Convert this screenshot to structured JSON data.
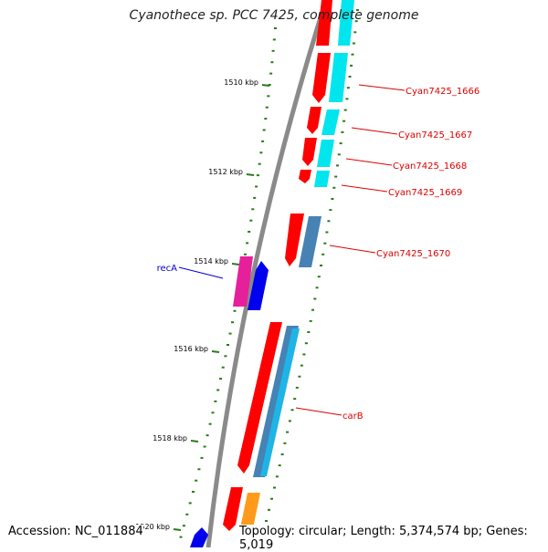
{
  "title": "Cyanothece sp. PCC 7425, complete genome",
  "footer": {
    "accession": "Accession: NC_011884",
    "summary": "Topology: circular; Length: 5,374,574 bp; Genes: 5,019"
  },
  "colors": {
    "backbone": "#8a8a8a",
    "tick": "#2a7a1a",
    "gene_red": "#ff0000",
    "gene_cyan": "#00e5ee",
    "gene_steelblue": "#4682b4",
    "gene_skyblue": "#1fb4e6",
    "gene_pink": "#e6209a",
    "gene_blue": "#0000ee",
    "gene_orange": "#ff9a1a",
    "label_red": "#dd0000",
    "label_blue": "#0000cc"
  },
  "ticks": [
    {
      "kbp": 1510,
      "label": "1510 kbp"
    },
    {
      "kbp": 1512,
      "label": "1512 kbp"
    },
    {
      "kbp": 1514,
      "label": "1514 kbp"
    },
    {
      "kbp": 1516,
      "label": "1516 kbp"
    },
    {
      "kbp": 1518,
      "label": "1518 kbp"
    },
    {
      "kbp": 1520,
      "label": "1520 kbp"
    }
  ],
  "gene_labels": [
    {
      "name": "Cyan7425_1666",
      "color": "red"
    },
    {
      "name": "Cyan7425_1667",
      "color": "red"
    },
    {
      "name": "Cyan7425_1668",
      "color": "red"
    },
    {
      "name": "Cyan7425_1669",
      "color": "red"
    },
    {
      "name": "Cyan7425_1670",
      "color": "red"
    },
    {
      "name": "carB",
      "color": "red"
    },
    {
      "name": "recA",
      "color": "blue"
    }
  ]
}
